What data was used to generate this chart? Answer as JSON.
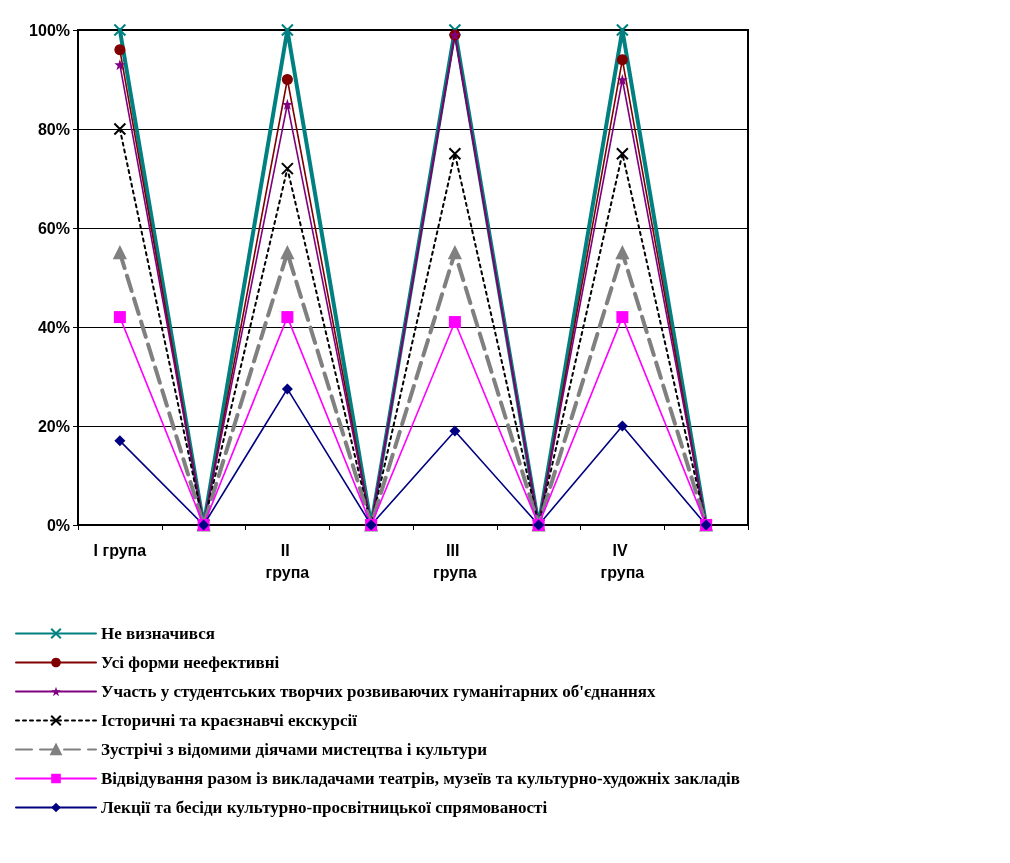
{
  "chart_data": {
    "type": "line",
    "categories": [
      "I група",
      null,
      "II група",
      null,
      "III група",
      null,
      "IV група",
      null
    ],
    "ylim": [
      0,
      100
    ],
    "yticks": [
      {
        "value": 0,
        "label": "0%"
      },
      {
        "value": 20,
        "label": "20%"
      },
      {
        "value": 40,
        "label": "40%"
      },
      {
        "value": 60,
        "label": "60%"
      },
      {
        "value": 80,
        "label": "80%"
      },
      {
        "value": 100,
        "label": "100%"
      }
    ],
    "grid": "y",
    "legend": "bottom",
    "series": [
      {
        "name": "Не визначився",
        "color": "#008080",
        "marker": "cross",
        "line_style": "solid",
        "values": [
          100,
          0,
          100,
          0,
          100,
          0,
          100,
          0
        ]
      },
      {
        "name": "Усі форми неефективні",
        "color": "#800000",
        "marker": "circle",
        "line_style": "solid",
        "values": [
          96,
          0,
          90,
          0,
          99,
          0,
          94,
          0
        ]
      },
      {
        "name": "Участь у студентських творчих розвиваючих гуманітарних об'єднаннях",
        "color": "#800080",
        "marker": "star",
        "line_style": "solid",
        "values": [
          93,
          0,
          85,
          0,
          99,
          0,
          90,
          0
        ]
      },
      {
        "name": "Історичні та краєзнавчі екскурсії",
        "color": "#000000",
        "marker": "cross",
        "line_style": "dotted",
        "values": [
          80,
          0,
          72,
          0,
          75,
          0,
          75,
          0
        ]
      },
      {
        "name": "Зустрічі з відомими діячами мистецтва і культури",
        "color": "#808080",
        "marker": "triangle",
        "line_style": "dashed",
        "values": [
          55,
          0,
          55,
          0,
          55,
          0,
          55,
          0
        ]
      },
      {
        "name": "Відвідування разом із викладачами театрів, музеїв та культурно-художніх закладів",
        "color": "#ff00ff",
        "marker": "square",
        "line_style": "solid",
        "values": [
          42,
          0,
          42,
          0,
          41,
          0,
          42,
          0
        ]
      },
      {
        "name": "Лекції та бесіди культурно-просвітницької спрямованості",
        "color": "#000080",
        "marker": "diamond",
        "line_style": "solid",
        "values": [
          17,
          0,
          27.5,
          0,
          19,
          0,
          20,
          0
        ]
      }
    ]
  }
}
